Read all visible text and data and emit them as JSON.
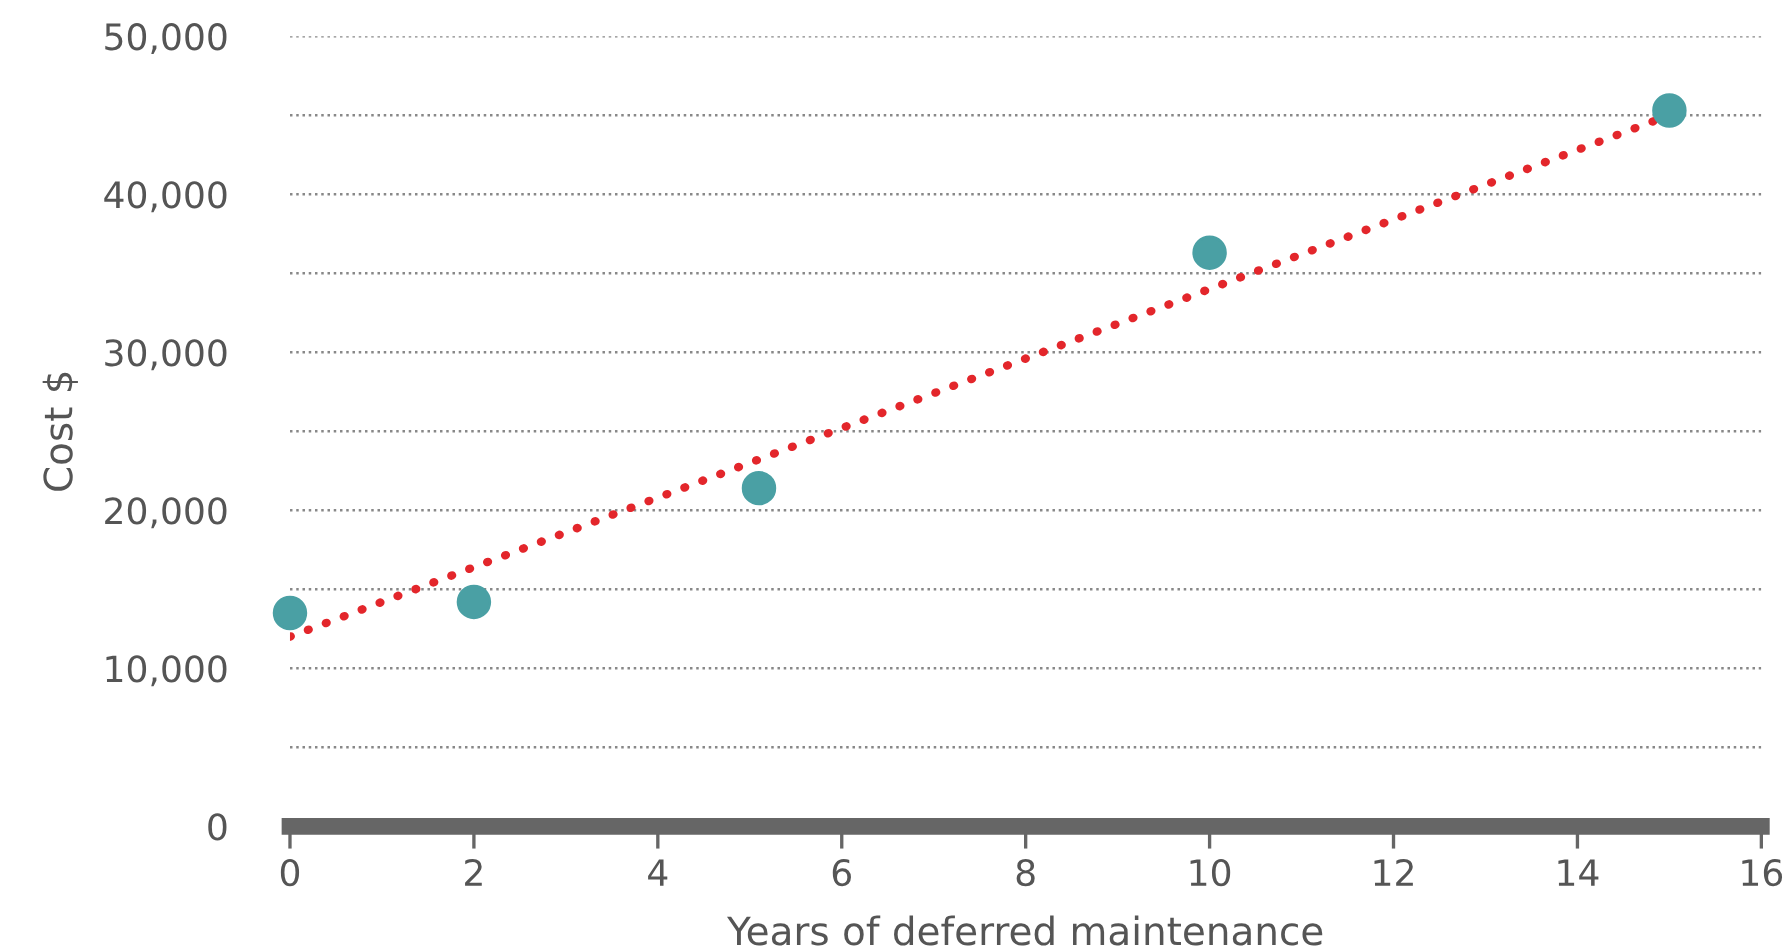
{
  "chart_data": {
    "type": "scatter",
    "xlabel": "Years of deferred maintenance",
    "ylabel": "Cost $",
    "series": [
      {
        "color": "#4aa0a4",
        "marker": "circle",
        "x": [
          0,
          2,
          5.1,
          10,
          15
        ],
        "values": [
          13500,
          14200,
          21400,
          36300,
          45300
        ]
      },
      {
        "type": "line",
        "color": "#e3262b",
        "line_style": "dotted",
        "marker": "none",
        "x": [
          0,
          15
        ],
        "values": [
          12000,
          45000
        ]
      }
    ],
    "xlim": [
      0,
      16
    ],
    "xticks": [
      0,
      2,
      4,
      6,
      8,
      10,
      12,
      14,
      16
    ],
    "ylim": [
      0,
      50000
    ],
    "yticks": [
      {
        "value": 0,
        "label": "0"
      },
      {
        "value": 5000,
        "label": null
      },
      {
        "value": 10000,
        "label": "10,000"
      },
      {
        "value": 15000,
        "label": null
      },
      {
        "value": 20000,
        "label": "20,000"
      },
      {
        "value": 25000,
        "label": null
      },
      {
        "value": 30000,
        "label": "30,000"
      },
      {
        "value": 35000,
        "label": null
      },
      {
        "value": 40000,
        "label": "40,000"
      },
      {
        "value": 45000,
        "label": null
      },
      {
        "value": 50000,
        "label": "50,000"
      }
    ],
    "grid": "y"
  }
}
